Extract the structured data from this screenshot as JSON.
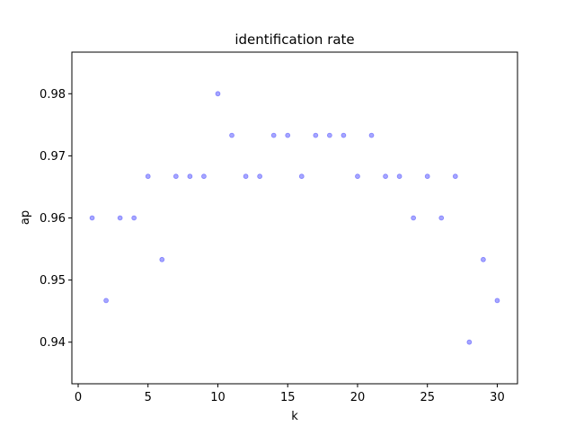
{
  "chart_data": {
    "type": "scatter",
    "title": "identification rate",
    "xlabel": "k",
    "ylabel": "ap",
    "xlim": [
      -0.45,
      31.45
    ],
    "ylim": [
      0.9333,
      0.9867
    ],
    "xticks": [
      0,
      5,
      10,
      15,
      20,
      25,
      30
    ],
    "xtick_labels": [
      "0",
      "5",
      "10",
      "15",
      "20",
      "25",
      "30"
    ],
    "yticks": [
      0.94,
      0.95,
      0.96,
      0.97,
      0.98
    ],
    "ytick_labels": [
      "0.94",
      "0.95",
      "0.96",
      "0.97",
      "0.98"
    ],
    "grid": false,
    "marker_color": "#0000ff",
    "series": [
      {
        "x": [
          1,
          2,
          3,
          4,
          5,
          6,
          7,
          8,
          9,
          10,
          11,
          12,
          13,
          14,
          15,
          16,
          17,
          18,
          19,
          20,
          21,
          22,
          23,
          24,
          25,
          26,
          27,
          28,
          29,
          30
        ],
        "y": [
          0.96,
          0.9467,
          0.96,
          0.96,
          0.9667,
          0.9533,
          0.9667,
          0.9667,
          0.9667,
          0.98,
          0.9733,
          0.9667,
          0.9667,
          0.9733,
          0.9733,
          0.9667,
          0.9733,
          0.9733,
          0.9733,
          0.9667,
          0.9733,
          0.9667,
          0.9667,
          0.96,
          0.9667,
          0.96,
          0.9667,
          0.94,
          0.9533,
          0.9467
        ]
      }
    ]
  }
}
